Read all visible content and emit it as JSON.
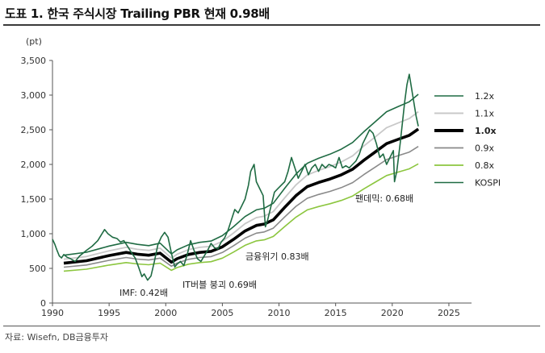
{
  "header": {
    "title": "도표 1. 한국 주식시장 Trailing PBR 현재 0.98배"
  },
  "footer": {
    "source": "자료: Wisefn, DB금융투자"
  },
  "colors": {
    "kospi": "#1f6b43",
    "band_1_2": "#1f6b43",
    "band_1_1": "#c8c8c8",
    "band_1_0": "#000000",
    "band_0_9": "#8a8a8a",
    "band_0_8": "#8cc63f"
  },
  "chart_data": {
    "type": "line",
    "title": "한국 주식시장 Trailing PBR 현재 0.98배",
    "ylabel": "(pt)",
    "xlabel": "",
    "xlim": [
      1990,
      2027
    ],
    "ylim": [
      0,
      3500
    ],
    "x_ticks": [
      "1990",
      "1995",
      "2000",
      "2005",
      "2010",
      "2015",
      "2020",
      "2025"
    ],
    "y_ticks": [
      "0",
      "500",
      "1,000",
      "1,500",
      "2,000",
      "2,500",
      "3,000",
      "3,500"
    ],
    "legend": [
      "1.2x",
      "1.1x",
      "1.0x",
      "0.9x",
      "0.8x",
      "KOSPI"
    ],
    "x": [
      1991,
      1993,
      1995,
      1996.5,
      1997.5,
      1998.5,
      1999.5,
      2000.5,
      2001,
      2002,
      2003,
      2004,
      2005,
      2006,
      2007,
      2008,
      2008.7,
      2009.5,
      2010.5,
      2011.5,
      2012.5,
      2013.5,
      2014.5,
      2015.5,
      2016.5,
      2017.5,
      2018.5,
      2019.5,
      2020.5,
      2021.5,
      2022.3
    ],
    "series": [
      {
        "name": "1.0x",
        "values": [
          575,
          610,
          685,
          730,
          705,
          690,
          720,
          590,
          640,
          700,
          730,
          745,
          810,
          920,
          1040,
          1120,
          1140,
          1200,
          1380,
          1550,
          1680,
          1740,
          1790,
          1850,
          1930,
          2060,
          2180,
          2300,
          2360,
          2420,
          2510
        ]
      },
      {
        "name": "1.1x",
        "values": [
          632,
          671,
          753,
          803,
          775,
          759,
          792,
          649,
          704,
          770,
          803,
          819,
          891,
          1012,
          1144,
          1232,
          1254,
          1320,
          1518,
          1705,
          1848,
          1914,
          1969,
          2035,
          2123,
          2266,
          2398,
          2530,
          2596,
          2662,
          2761
        ]
      },
      {
        "name": "1.2x",
        "values": [
          690,
          732,
          822,
          876,
          846,
          828,
          864,
          708,
          768,
          840,
          876,
          894,
          972,
          1104,
          1248,
          1344,
          1368,
          1440,
          1656,
          1860,
          2016,
          2088,
          2148,
          2220,
          2316,
          2472,
          2616,
          2760,
          2832,
          2904,
          3012
        ]
      },
      {
        "name": "0.9x",
        "values": [
          517,
          549,
          616,
          657,
          634,
          621,
          648,
          531,
          576,
          630,
          657,
          670,
          729,
          828,
          936,
          1008,
          1026,
          1080,
          1242,
          1395,
          1512,
          1566,
          1611,
          1665,
          1737,
          1854,
          1962,
          2070,
          2124,
          2178,
          2259
        ]
      },
      {
        "name": "0.8x",
        "values": [
          460,
          488,
          548,
          584,
          564,
          552,
          576,
          472,
          512,
          560,
          584,
          596,
          648,
          736,
          832,
          896,
          912,
          960,
          1104,
          1240,
          1344,
          1392,
          1432,
          1480,
          1544,
          1648,
          1744,
          1840,
          1888,
          1936,
          2008
        ]
      }
    ],
    "kospi": {
      "x": [
        1990,
        1990.2,
        1990.4,
        1990.6,
        1990.8,
        1991,
        1991.3,
        1991.6,
        1992,
        1992.4,
        1992.7,
        1993,
        1993.5,
        1994,
        1994.3,
        1994.6,
        1994.9,
        1995.3,
        1995.7,
        1996,
        1996.3,
        1996.7,
        1997,
        1997.3,
        1997.6,
        1997.9,
        1998.1,
        1998.4,
        1998.7,
        1999,
        1999.3,
        1999.6,
        1999.9,
        2000.2,
        2000.5,
        2000.8,
        2001,
        2001.3,
        2001.6,
        2001.9,
        2002.2,
        2002.5,
        2002.8,
        2003.1,
        2003.4,
        2003.7,
        2004,
        2004.3,
        2004.6,
        2004.9,
        2005.2,
        2005.5,
        2005.8,
        2006.1,
        2006.4,
        2006.7,
        2007,
        2007.3,
        2007.5,
        2007.8,
        2008,
        2008.3,
        2008.6,
        2008.8,
        2009,
        2009.3,
        2009.6,
        2009.9,
        2010.2,
        2010.5,
        2010.8,
        2011.1,
        2011.4,
        2011.7,
        2012,
        2012.3,
        2012.6,
        2012.9,
        2013.2,
        2013.5,
        2013.8,
        2014.1,
        2014.4,
        2014.7,
        2015,
        2015.3,
        2015.6,
        2015.9,
        2016.2,
        2016.5,
        2016.8,
        2017.1,
        2017.4,
        2017.7,
        2018,
        2018.3,
        2018.6,
        2018.9,
        2019.2,
        2019.5,
        2019.8,
        2020.1,
        2020.2,
        2020.4,
        2020.7,
        2020.9,
        2021.1,
        2021.3,
        2021.5,
        2021.7,
        2021.9,
        2022.1,
        2022.3
      ],
      "values": [
        920,
        850,
        760,
        680,
        650,
        700,
        660,
        640,
        600,
        680,
        720,
        760,
        820,
        900,
        980,
        1060,
        1000,
        950,
        930,
        880,
        900,
        800,
        720,
        650,
        520,
        380,
        420,
        330,
        390,
        600,
        840,
        950,
        1020,
        950,
        720,
        520,
        560,
        600,
        540,
        700,
        900,
        760,
        640,
        600,
        680,
        760,
        860,
        800,
        780,
        880,
        940,
        1050,
        1200,
        1350,
        1300,
        1400,
        1500,
        1700,
        1900,
        2000,
        1750,
        1650,
        1550,
        1100,
        1200,
        1400,
        1600,
        1650,
        1700,
        1750,
        1900,
        2100,
        1950,
        1800,
        1900,
        2000,
        1850,
        1950,
        2000,
        1900,
        2000,
        1950,
        2000,
        1980,
        1950,
        2100,
        1950,
        1980,
        1950,
        2000,
        2050,
        2150,
        2300,
        2400,
        2500,
        2450,
        2300,
        2100,
        2150,
        2000,
        2100,
        2200,
        1750,
        1900,
        2300,
        2600,
        2900,
        3150,
        3300,
        3100,
        2900,
        2700,
        2550
      ]
    },
    "annotations": [
      "IMF: 0.42배",
      "IT버블 붕괴 0.69배",
      "금융위기 0.83배",
      "팬데믹: 0.68배"
    ]
  }
}
